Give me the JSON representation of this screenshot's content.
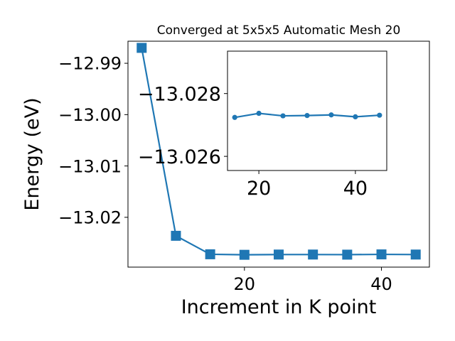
{
  "chart_data": [
    {
      "type": "line",
      "title": "Converged at 5x5x5 Automatic Mesh 20",
      "xlabel": "Increment in K point",
      "ylabel": "Energy (eV)",
      "xlim": [
        3,
        47
      ],
      "ylim": [
        -13.0297,
        -12.9857
      ],
      "x_ticks": [
        20,
        40
      ],
      "y_ticks": [
        -12.99,
        -13.0,
        -13.01,
        -13.02
      ],
      "x_tick_labels": [
        "20",
        "40"
      ],
      "y_tick_labels": [
        "−12.99",
        "−13.00",
        "−13.01",
        "−13.02"
      ],
      "marker": "square",
      "color": "#1f77b4",
      "grid": false,
      "series": [
        {
          "x": [
            5,
            10,
            15,
            20,
            25,
            30,
            35,
            40,
            45
          ],
          "y": [
            -12.987,
            -13.0236,
            -13.0272,
            -13.0273,
            -13.02725,
            -13.02725,
            -13.02727,
            -13.02722,
            -13.02725
          ]
        }
      ]
    },
    {
      "type": "line",
      "title": "",
      "xlabel": "",
      "ylabel": "",
      "xlim": [
        13.5,
        46.5
      ],
      "ylim": [
        -13.02555,
        -13.02935
      ],
      "x_ticks": [
        20,
        40
      ],
      "y_ticks": [
        -13.028,
        -13.026
      ],
      "x_tick_labels": [
        "20",
        "40"
      ],
      "y_tick_labels": [
        "−13.028",
        "−13.026"
      ],
      "marker": "circle",
      "color": "#1f77b4",
      "grid": false,
      "series": [
        {
          "x": [
            15,
            20,
            25,
            30,
            35,
            40,
            45
          ],
          "y": [
            -13.02724,
            -13.02737,
            -13.02729,
            -13.0273,
            -13.02732,
            -13.02726,
            -13.02731
          ]
        }
      ]
    }
  ]
}
